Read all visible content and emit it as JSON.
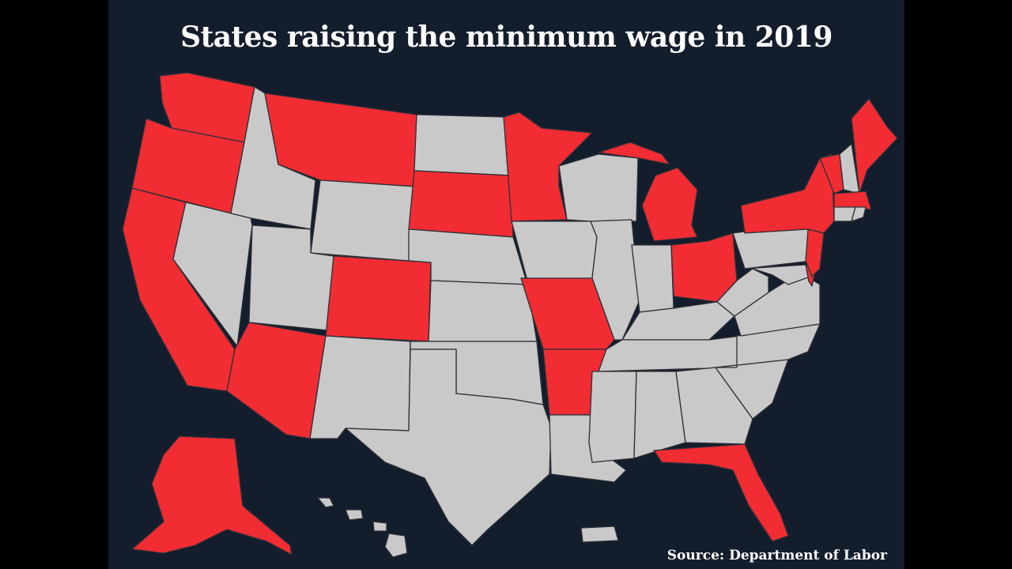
{
  "title": "States raising the minimum wage in 2019",
  "source": "Source: Department of Labor",
  "colors": {
    "background": "#141d2c",
    "raising": "#f22c33",
    "not_raising": "#c9c9c9",
    "border": "#2b2f36"
  },
  "states_raising": [
    "WA",
    "OR",
    "CA",
    "AZ",
    "MT",
    "CO",
    "SD",
    "MN",
    "MO",
    "AR",
    "MI",
    "OH",
    "NY",
    "VT",
    "ME",
    "MA",
    "NJ",
    "DE",
    "FL",
    "AK"
  ],
  "states_not_raising": [
    "ID",
    "NV",
    "UT",
    "WY",
    "NM",
    "TX",
    "ND",
    "NE",
    "KS",
    "OK",
    "IA",
    "WI",
    "IL",
    "IN",
    "KY",
    "TN",
    "LA",
    "MS",
    "AL",
    "GA",
    "SC",
    "NC",
    "VA",
    "WV",
    "PA",
    "MD",
    "NH",
    "CT",
    "RI",
    "HI"
  ]
}
